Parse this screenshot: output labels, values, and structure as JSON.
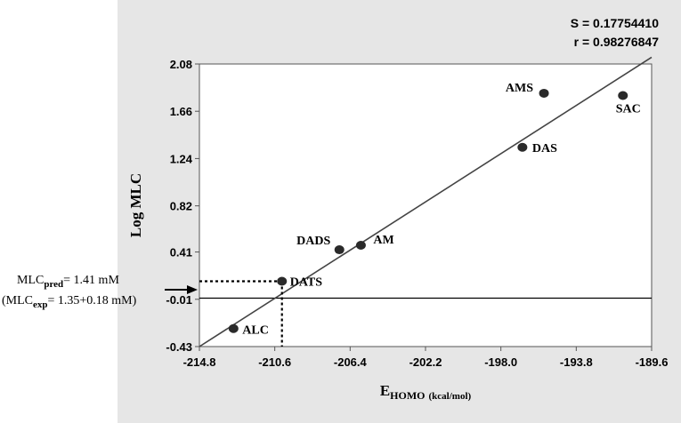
{
  "chart_data": {
    "type": "scatter",
    "xlabel": {
      "main": "E",
      "sub": "HOMO",
      "unit": "(kcal/mol)"
    },
    "ylabel": "Log MLC",
    "xlim": [
      -214.8,
      -189.6
    ],
    "ylim": [
      -0.43,
      2.08
    ],
    "x_ticks": [
      "-214.8",
      "-210.6",
      "-206.4",
      "-202.2",
      "-198.0",
      "-193.8",
      "-189.6"
    ],
    "y_ticks": [
      "-0.43",
      "-0.01",
      "0.41",
      "0.82",
      "1.24",
      "1.66",
      "2.08"
    ],
    "stats": {
      "s": "S = 0.17754410",
      "r": "r = 0.98276847"
    },
    "points": [
      {
        "label": "ALC",
        "x": -212.9,
        "y": -0.27
      },
      {
        "label": "DATS",
        "x": -210.2,
        "y": 0.15
      },
      {
        "label": "DADS",
        "x": -207.0,
        "y": 0.43
      },
      {
        "label": "AM",
        "x": -205.8,
        "y": 0.47
      },
      {
        "label": "DAS",
        "x": -196.8,
        "y": 1.34
      },
      {
        "label": "AMS",
        "x": -195.6,
        "y": 1.82
      },
      {
        "label": "SAC",
        "x": -191.2,
        "y": 1.8
      }
    ],
    "regression": {
      "x": [
        -214.8,
        -189.6
      ],
      "y": [
        -0.43,
        2.14
      ]
    },
    "reference_x": -210.2,
    "reference_y": 0.15,
    "annotation": {
      "pred_main": "MLC",
      "pred_sub": "pred",
      "pred_value": "= 1.41 mM",
      "exp_open": "(MLC",
      "exp_sub": "exp",
      "exp_value": "= 1.35+0.18 mM)"
    }
  }
}
